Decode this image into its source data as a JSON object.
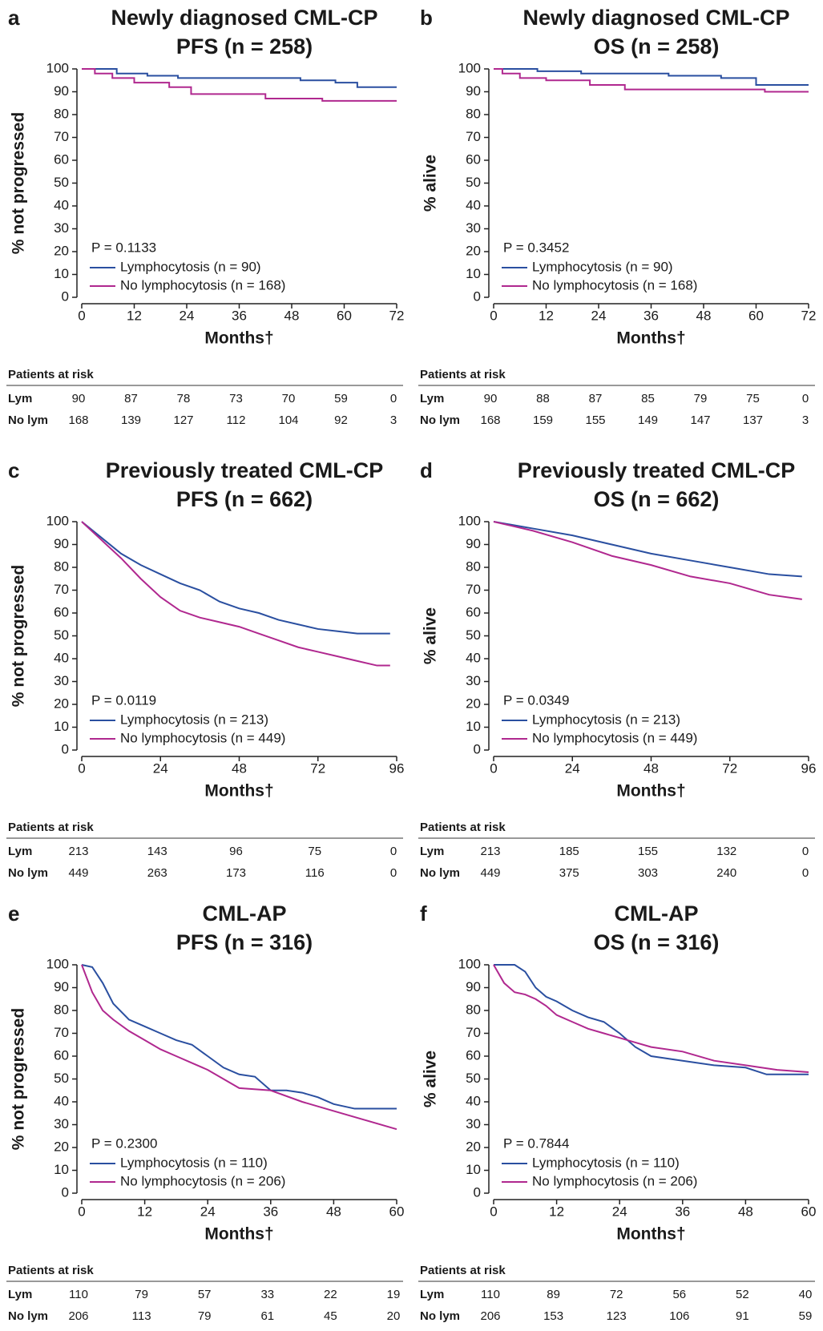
{
  "chart_data": [
    {
      "type": "line",
      "panel": "a",
      "title": [
        "Newly diagnosed CML-CP",
        "PFS (n = 258)"
      ],
      "y_label": "% not progressed",
      "x_label": "Months†",
      "p_value": "P = 0.1133",
      "xlim": [
        0,
        72
      ],
      "xticks": [
        0,
        12,
        24,
        36,
        48,
        60,
        72
      ],
      "ylim": [
        0,
        100
      ],
      "yticks": [
        0,
        10,
        20,
        30,
        40,
        50,
        60,
        70,
        80,
        90,
        100
      ],
      "series": [
        {
          "name": "Lymphocytosis (n = 90)",
          "color": "#2a4fa0",
          "x": [
            0,
            8,
            8,
            15,
            15,
            22,
            22,
            50,
            50,
            58,
            58,
            63,
            63,
            72
          ],
          "values": [
            100,
            100,
            98,
            98,
            97,
            97,
            96,
            96,
            95,
            95,
            94,
            94,
            92,
            92
          ]
        },
        {
          "name": "No lymphocytosis (n = 168)",
          "color": "#b0288f",
          "x": [
            0,
            3,
            3,
            7,
            7,
            12,
            12,
            20,
            20,
            25,
            25,
            42,
            42,
            55,
            55,
            72
          ],
          "values": [
            100,
            100,
            98,
            98,
            96,
            96,
            94,
            94,
            92,
            92,
            89,
            89,
            87,
            87,
            86,
            86
          ]
        }
      ],
      "risk_title": "Patients at risk",
      "risk": [
        {
          "label": "Lym",
          "values": [
            90,
            87,
            78,
            73,
            70,
            59,
            0
          ]
        },
        {
          "label": "No lym",
          "values": [
            168,
            139,
            127,
            112,
            104,
            92,
            3
          ]
        }
      ]
    },
    {
      "type": "line",
      "panel": "b",
      "title": [
        "Newly diagnosed CML-CP",
        "OS (n = 258)"
      ],
      "y_label": "% alive",
      "x_label": "Months†",
      "p_value": "P = 0.3452",
      "xlim": [
        0,
        72
      ],
      "xticks": [
        0,
        12,
        24,
        36,
        48,
        60,
        72
      ],
      "ylim": [
        0,
        100
      ],
      "yticks": [
        0,
        10,
        20,
        30,
        40,
        50,
        60,
        70,
        80,
        90,
        100
      ],
      "series": [
        {
          "name": "Lymphocytosis (n = 90)",
          "color": "#2a4fa0",
          "x": [
            0,
            10,
            10,
            20,
            20,
            40,
            40,
            52,
            52,
            60,
            60,
            72
          ],
          "values": [
            100,
            100,
            99,
            99,
            98,
            98,
            97,
            97,
            96,
            96,
            93,
            93
          ]
        },
        {
          "name": "No lymphocytosis (n = 168)",
          "color": "#b0288f",
          "x": [
            0,
            2,
            2,
            6,
            6,
            12,
            12,
            22,
            22,
            30,
            30,
            62,
            62,
            72
          ],
          "values": [
            100,
            100,
            98,
            98,
            96,
            96,
            95,
            95,
            93,
            93,
            91,
            91,
            90,
            90
          ]
        }
      ],
      "risk_title": "Patients at risk",
      "risk": [
        {
          "label": "Lym",
          "values": [
            90,
            88,
            87,
            85,
            79,
            75,
            0
          ]
        },
        {
          "label": "No lym",
          "values": [
            168,
            159,
            155,
            149,
            147,
            137,
            3
          ]
        }
      ]
    },
    {
      "type": "line",
      "panel": "c",
      "title": [
        "Previously treated CML-CP",
        "PFS (n = 662)"
      ],
      "y_label": "% not progressed",
      "x_label": "Months†",
      "p_value": "P = 0.0119",
      "xlim": [
        0,
        96
      ],
      "xticks": [
        0,
        24,
        48,
        72,
        96
      ],
      "ylim": [
        0,
        100
      ],
      "yticks": [
        0,
        10,
        20,
        30,
        40,
        50,
        60,
        70,
        80,
        90,
        100
      ],
      "series": [
        {
          "name": "Lymphocytosis (n = 213)",
          "color": "#2a4fa0",
          "x": [
            0,
            6,
            12,
            18,
            24,
            30,
            36,
            42,
            48,
            54,
            60,
            66,
            72,
            78,
            84,
            90,
            94
          ],
          "values": [
            100,
            93,
            86,
            81,
            77,
            73,
            70,
            65,
            62,
            60,
            57,
            55,
            53,
            52,
            51,
            51,
            51
          ]
        },
        {
          "name": "No lymphocytosis (n = 449)",
          "color": "#b0288f",
          "x": [
            0,
            6,
            12,
            18,
            24,
            30,
            36,
            42,
            48,
            54,
            60,
            66,
            72,
            78,
            84,
            90,
            94
          ],
          "values": [
            100,
            92,
            84,
            75,
            67,
            61,
            58,
            56,
            54,
            51,
            48,
            45,
            43,
            41,
            39,
            37,
            37
          ]
        }
      ],
      "risk_title": "Patients at risk",
      "risk": [
        {
          "label": "Lym",
          "values": [
            213,
            143,
            96,
            75,
            0
          ]
        },
        {
          "label": "No lym",
          "values": [
            449,
            263,
            173,
            116,
            0
          ]
        }
      ]
    },
    {
      "type": "line",
      "panel": "d",
      "title": [
        "Previously treated CML-CP",
        "OS (n = 662)"
      ],
      "y_label": "% alive",
      "x_label": "Months†",
      "p_value": "P = 0.0349",
      "xlim": [
        0,
        96
      ],
      "xticks": [
        0,
        24,
        48,
        72,
        96
      ],
      "ylim": [
        0,
        100
      ],
      "yticks": [
        0,
        10,
        20,
        30,
        40,
        50,
        60,
        70,
        80,
        90,
        100
      ],
      "series": [
        {
          "name": "Lymphocytosis (n = 213)",
          "color": "#2a4fa0",
          "x": [
            0,
            12,
            24,
            36,
            48,
            60,
            72,
            84,
            94
          ],
          "values": [
            100,
            97,
            94,
            90,
            86,
            83,
            80,
            77,
            76
          ]
        },
        {
          "name": "No lymphocytosis (n = 449)",
          "color": "#b0288f",
          "x": [
            0,
            12,
            24,
            36,
            48,
            60,
            72,
            84,
            94
          ],
          "values": [
            100,
            96,
            91,
            85,
            81,
            76,
            73,
            68,
            66
          ]
        }
      ],
      "risk_title": "Patients at risk",
      "risk": [
        {
          "label": "Lym",
          "values": [
            213,
            185,
            155,
            132,
            0
          ]
        },
        {
          "label": "No lym",
          "values": [
            449,
            375,
            303,
            240,
            0
          ]
        }
      ]
    },
    {
      "type": "line",
      "panel": "e",
      "title": [
        "CML-AP",
        "PFS (n = 316)"
      ],
      "y_label": "% not progressed",
      "x_label": "Months†",
      "p_value": "P = 0.2300",
      "xlim": [
        0,
        60
      ],
      "xticks": [
        0,
        12,
        24,
        36,
        48,
        60
      ],
      "ylim": [
        0,
        100
      ],
      "yticks": [
        0,
        10,
        20,
        30,
        40,
        50,
        60,
        70,
        80,
        90,
        100
      ],
      "series": [
        {
          "name": "Lymphocytosis (n = 110)",
          "color": "#2a4fa0",
          "x": [
            0,
            2,
            4,
            6,
            9,
            12,
            15,
            18,
            21,
            24,
            27,
            30,
            33,
            36,
            39,
            42,
            45,
            48,
            52,
            60
          ],
          "values": [
            100,
            99,
            92,
            83,
            76,
            73,
            70,
            67,
            65,
            60,
            55,
            52,
            51,
            45,
            45,
            44,
            42,
            39,
            37,
            37
          ]
        },
        {
          "name": "No lymphocytosis (n = 206)",
          "color": "#b0288f",
          "x": [
            0,
            2,
            4,
            6,
            9,
            12,
            15,
            18,
            21,
            24,
            27,
            30,
            36,
            42,
            48,
            54,
            60
          ],
          "values": [
            100,
            88,
            80,
            76,
            71,
            67,
            63,
            60,
            57,
            54,
            50,
            46,
            45,
            40,
            36,
            32,
            28
          ]
        }
      ],
      "risk_title": "Patients at risk",
      "risk": [
        {
          "label": "Lym",
          "values": [
            110,
            79,
            57,
            33,
            22,
            19
          ]
        },
        {
          "label": "No lym",
          "values": [
            206,
            113,
            79,
            61,
            45,
            20
          ]
        }
      ]
    },
    {
      "type": "line",
      "panel": "f",
      "title": [
        "CML-AP",
        "OS (n = 316)"
      ],
      "y_label": "% alive",
      "x_label": "Months†",
      "p_value": "P = 0.7844",
      "xlim": [
        0,
        60
      ],
      "xticks": [
        0,
        12,
        24,
        36,
        48,
        60
      ],
      "ylim": [
        0,
        100
      ],
      "yticks": [
        0,
        10,
        20,
        30,
        40,
        50,
        60,
        70,
        80,
        90,
        100
      ],
      "series": [
        {
          "name": "Lymphocytosis (n = 110)",
          "color": "#2a4fa0",
          "x": [
            0,
            4,
            6,
            8,
            10,
            12,
            15,
            18,
            21,
            24,
            27,
            30,
            33,
            36,
            42,
            48,
            52,
            60
          ],
          "values": [
            100,
            100,
            97,
            90,
            86,
            84,
            80,
            77,
            75,
            70,
            64,
            60,
            59,
            58,
            56,
            55,
            52,
            52
          ]
        },
        {
          "name": "No lymphocytosis (n = 206)",
          "color": "#b0288f",
          "x": [
            0,
            2,
            4,
            6,
            8,
            10,
            12,
            15,
            18,
            21,
            24,
            27,
            30,
            36,
            42,
            48,
            54,
            60
          ],
          "values": [
            100,
            92,
            88,
            87,
            85,
            82,
            78,
            75,
            72,
            70,
            68,
            66,
            64,
            62,
            58,
            56,
            54,
            53
          ]
        }
      ],
      "risk_title": "Patients at risk",
      "risk": [
        {
          "label": "Lym",
          "values": [
            110,
            89,
            72,
            56,
            52,
            40
          ]
        },
        {
          "label": "No lym",
          "values": [
            206,
            153,
            123,
            106,
            91,
            59
          ]
        }
      ]
    }
  ]
}
